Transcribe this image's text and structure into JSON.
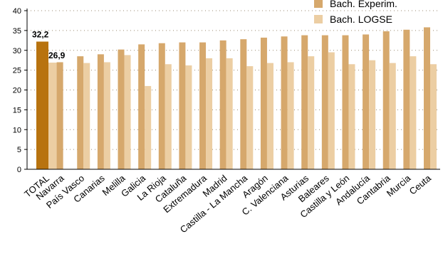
{
  "chart_data": {
    "type": "bar",
    "title": "",
    "xlabel": "",
    "ylabel": "",
    "ylim": [
      0,
      40
    ],
    "yticks": [
      0,
      5,
      10,
      15,
      20,
      25,
      30,
      35,
      40
    ],
    "grid": "dotted-horizontal",
    "legend_position": "top-right",
    "categories": [
      "TOTAL",
      "Navarra",
      "País Vasco",
      "Canarias",
      "Melilla",
      "Galicia",
      "La Rioja",
      "Cataluña",
      "Extremadura",
      "Madrid",
      "Castilla - La Mancha",
      "Aragón",
      "C. Valenciana",
      "Asturias",
      "Baleares",
      "Castilla y León",
      "Andalucía",
      "Cantabria",
      "Murcia",
      "Ceuta"
    ],
    "series": [
      {
        "name": "Bach. Experim.",
        "color": "#d6a86c",
        "highlight_color": "#b8730f",
        "values": [
          32.2,
          27.0,
          28.5,
          29.0,
          30.2,
          31.5,
          31.8,
          32.0,
          32.0,
          32.5,
          32.8,
          33.2,
          33.5,
          33.8,
          33.8,
          33.8,
          34.0,
          34.8,
          35.2,
          35.8
        ]
      },
      {
        "name": "Bach. LOGSE",
        "color": "#ecceA3",
        "values": [
          26.9,
          null,
          26.8,
          27.0,
          28.8,
          21.0,
          26.5,
          26.2,
          28.0,
          28.0,
          26.0,
          26.8,
          27.0,
          28.5,
          29.5,
          26.5,
          27.5,
          26.8,
          28.5,
          26.5
        ]
      }
    ],
    "data_labels": [
      {
        "series": 0,
        "category": "TOTAL",
        "text": "32,2"
      },
      {
        "series": 1,
        "category": "TOTAL",
        "text": "26,9"
      }
    ]
  }
}
